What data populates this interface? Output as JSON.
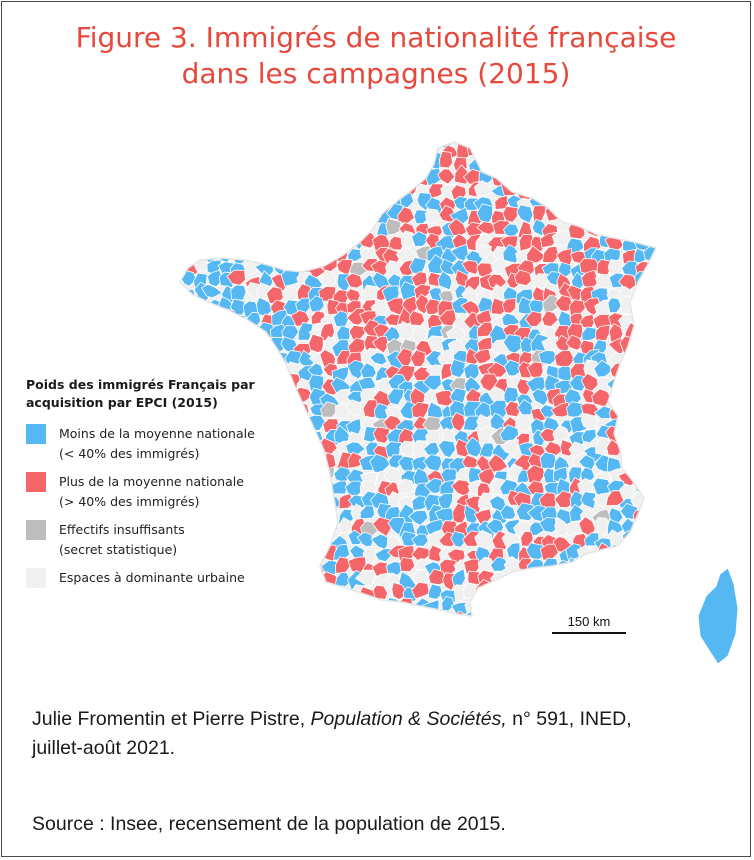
{
  "title": {
    "line1": "Figure 3. Immigrés de nationalité française",
    "line2": "dans les campagnes (2015)"
  },
  "legend": {
    "title_line1": "Poids des immigrés Français par",
    "title_line2": "acquisition par EPCI (2015)",
    "items": [
      {
        "label": "Moins de la moyenne nationale",
        "sublabel": "(< 40% des immigrés)",
        "color": "#56b8f2"
      },
      {
        "label": "Plus de la moyenne nationale",
        "sublabel": "(> 40% des immigrés)",
        "color": "#f4666a"
      },
      {
        "label": "Effectifs insuffisants",
        "sublabel": "(secret statistique)",
        "color": "#bdbdbd"
      },
      {
        "label": "Espaces à dominante urbaine",
        "sublabel": "",
        "color": "#f0f0f0"
      }
    ]
  },
  "scale_bar": {
    "label": "150 km"
  },
  "credit": {
    "authors": "Julie Fromentin et Pierre Pistre",
    "separator": ", ",
    "journal": "Population & Sociétés,",
    "issue": " n° 591, INED,",
    "date": "juillet-août 2021."
  },
  "source": "Source : Insee, recensement de la population de 2015."
}
